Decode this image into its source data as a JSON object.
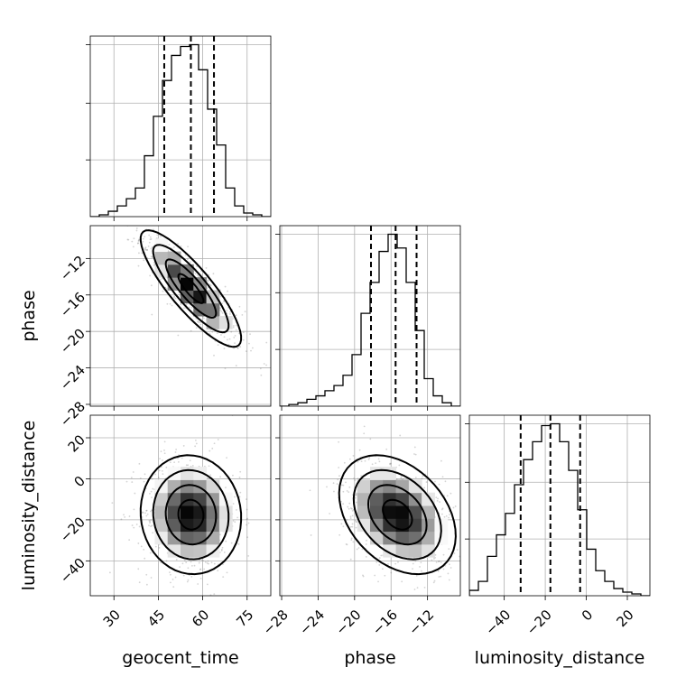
{
  "chart_data": {
    "type": "corner",
    "parameters": [
      "geocent_time",
      "phase",
      "luminosity_distance"
    ],
    "axis_labels": {
      "x": [
        "geocent_time",
        "phase",
        "luminosity_distance"
      ],
      "y": [
        "",
        "phase",
        "luminosity_distance"
      ]
    },
    "ranges": {
      "geocent_time": [
        22,
        83
      ],
      "phase": [
        -28.2,
        -8.4
      ],
      "luminosity_distance": [
        -57,
        31
      ]
    },
    "ticks": {
      "geocent_time": [
        30,
        45,
        60,
        75
      ],
      "phase": [
        -28,
        -24,
        -20,
        -16,
        -12
      ],
      "luminosity_distance": [
        -40,
        -20,
        0,
        20
      ]
    },
    "grid": true,
    "histograms": {
      "geocent_time": {
        "bin_edges": [
          22,
          25.05,
          28.1,
          31.15,
          34.2,
          37.25,
          40.3,
          43.35,
          46.4,
          49.45,
          52.5,
          55.55,
          58.6,
          61.65,
          64.7,
          67.75,
          70.8,
          73.85,
          76.9,
          79.95,
          83
        ],
        "counts": [
          0,
          1,
          3,
          6,
          10,
          16,
          34,
          56,
          76,
          90,
          95,
          96,
          82,
          60,
          40,
          16,
          6,
          2,
          1,
          0
        ],
        "quantiles": [
          47,
          56,
          63.8
        ]
      },
      "phase": {
        "bin_edges": [
          -28.2,
          -27.21,
          -26.22,
          -25.23,
          -24.24,
          -23.25,
          -22.26,
          -21.27,
          -20.28,
          -19.29,
          -18.3,
          -17.31,
          -16.32,
          -15.33,
          -14.34,
          -13.35,
          -12.36,
          -11.37,
          -10.38,
          -9.39,
          -8.4
        ],
        "counts": [
          0,
          1,
          2,
          4,
          6,
          9,
          12,
          18,
          30,
          54,
          72,
          90,
          100,
          92,
          72,
          44,
          16,
          6,
          2,
          0
        ],
        "quantiles": [
          -18.2,
          -15.5,
          -13.2
        ]
      },
      "luminosity_distance": {
        "bin_edges": [
          -57,
          -52.6,
          -48.2,
          -43.8,
          -39.4,
          -35,
          -30.6,
          -26.2,
          -21.8,
          -17.4,
          -13,
          -8.6,
          -4.2,
          0.2,
          4.6,
          9,
          13.4,
          17.8,
          22.2,
          26.6,
          31
        ],
        "counts": [
          3,
          8,
          22,
          34,
          46,
          62,
          76,
          86,
          95,
          96,
          86,
          70,
          48,
          26,
          14,
          8,
          4,
          2,
          1,
          0
        ],
        "quantiles": [
          -32,
          -17.5,
          -3
        ]
      }
    },
    "pairs": [
      {
        "x": "geocent_time",
        "y": "phase",
        "mean": [
          56,
          -15.3
        ],
        "sd": [
          8.5,
          3.2
        ],
        "correlation": -0.85
      },
      {
        "x": "geocent_time",
        "y": "luminosity_distance",
        "mean": [
          56,
          -17.5
        ],
        "sd": [
          8.5,
          14.5
        ],
        "correlation": -0.05
      },
      {
        "x": "phase",
        "y": "luminosity_distance",
        "mean": [
          -15.3,
          -17.5
        ],
        "sd": [
          3.2,
          14.5
        ],
        "correlation": -0.35
      }
    ],
    "contour_levels_sigma": [
      0.5,
      1.0,
      1.5,
      2.0
    ]
  }
}
